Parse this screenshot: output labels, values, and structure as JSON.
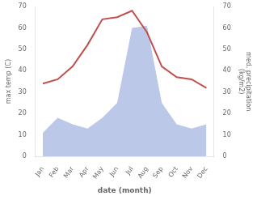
{
  "chart_data": {
    "type": "line",
    "categories": [
      "Jan",
      "Feb",
      "Mar",
      "Apr",
      "May",
      "Jun",
      "Jul",
      "Aug",
      "Sep",
      "Oct",
      "Nov",
      "Dec"
    ],
    "series": [
      {
        "color": "#c0504d",
        "values": [
          34,
          36,
          42,
          52,
          64,
          65,
          68,
          58,
          42,
          37,
          36,
          32
        ]
      },
      {
        "color": "#bcc8e8",
        "type": "area",
        "axis": "y2",
        "values": [
          11,
          18,
          15,
          13,
          18,
          25,
          60,
          61,
          25,
          15,
          13,
          15
        ]
      }
    ],
    "xlabel": "date (month)",
    "ylabel": "max temp (C)",
    "y2label": "med. precipitation\n(kg/m2)",
    "ylim": [
      0,
      70
    ],
    "yticks": [
      0,
      10,
      20,
      30,
      40,
      50,
      60,
      70
    ],
    "y2lim": [
      0,
      70
    ],
    "y2ticks": [
      0,
      10,
      20,
      30,
      40,
      50,
      60,
      70
    ],
    "grid": false
  }
}
